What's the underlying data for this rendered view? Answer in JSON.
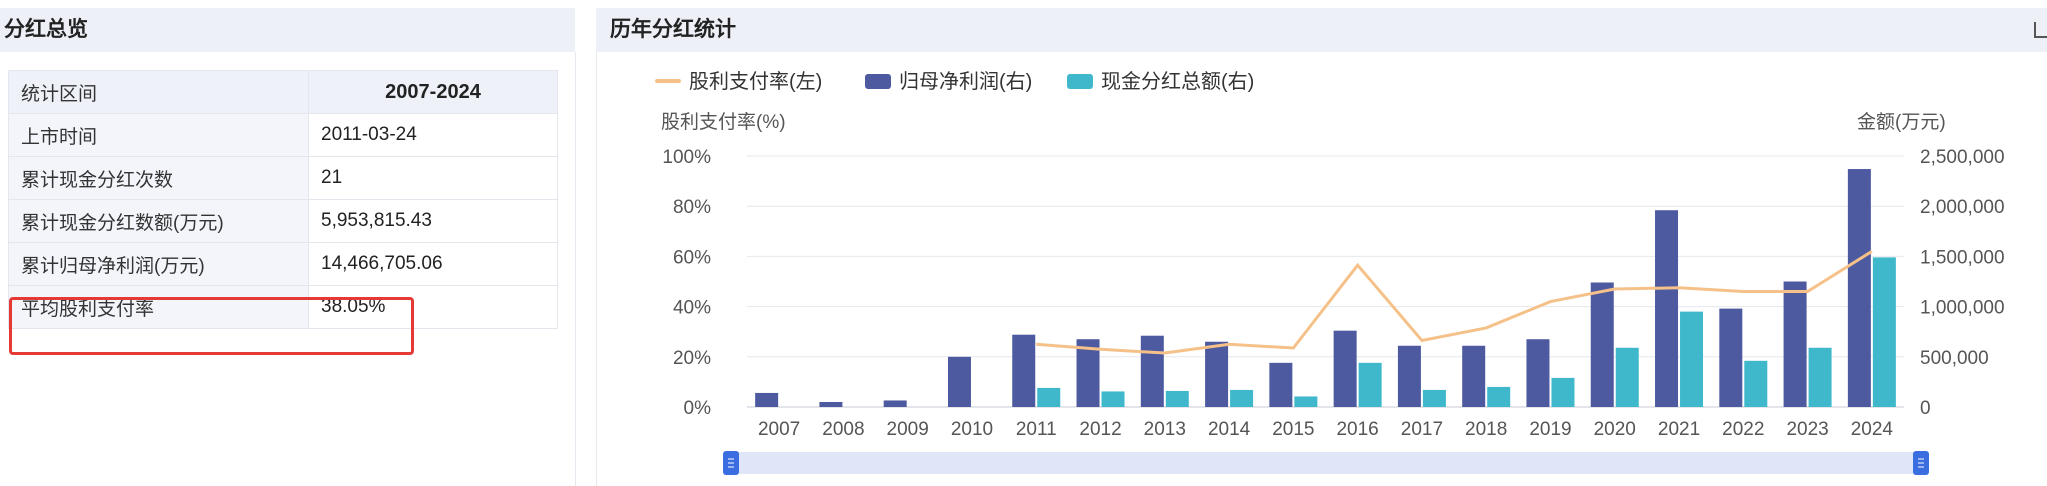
{
  "left_panel": {
    "title": "分红总览",
    "rows": [
      {
        "label": "统计区间",
        "value": "2007-2024"
      },
      {
        "label": "上市时间",
        "value": "2011-03-24"
      },
      {
        "label": "累计现金分红次数",
        "value": "21"
      },
      {
        "label": "累计现金分红数额(万元)",
        "value": "5,953,815.43"
      },
      {
        "label": "累计归母净利润(万元)",
        "value": "14,466,705.06"
      },
      {
        "label": "平均股利支付率",
        "value": "38.05%"
      }
    ]
  },
  "right_panel": {
    "title": "历年分红统计"
  },
  "colors": {
    "payout_line": "#f5c189",
    "net_profit_bar": "#4e5aa0",
    "cash_dividend_bar": "#3fb8cc",
    "highlight_border": "#e53935",
    "header_bg": "#eef0f8"
  },
  "chart_data": {
    "type": "bar",
    "categories": [
      "2007",
      "2008",
      "2009",
      "2010",
      "2011",
      "2012",
      "2013",
      "2014",
      "2015",
      "2016",
      "2017",
      "2018",
      "2019",
      "2020",
      "2021",
      "2022",
      "2023",
      "2024"
    ],
    "y_left": {
      "label": "股利支付率(%)",
      "min": 0,
      "max": 100,
      "ticks": [
        "0%",
        "20%",
        "40%",
        "60%",
        "80%",
        "100%"
      ]
    },
    "y_right": {
      "label": "金额(万元)",
      "min": 0,
      "max": 2500000,
      "ticks": [
        "0",
        "500,000",
        "1,000,000",
        "1,500,000",
        "2,000,000",
        "2,500,000"
      ]
    },
    "legend_position": "top-left",
    "series": [
      {
        "name": "股利支付率(左)",
        "kind": "line",
        "axis": "left",
        "values": [
          null,
          null,
          null,
          null,
          25,
          23,
          21.5,
          25,
          23.5,
          56.5,
          26.5,
          31.5,
          42,
          47,
          47.5,
          46,
          46,
          62
        ]
      },
      {
        "name": "归母净利润(右)",
        "kind": "bar",
        "axis": "right",
        "values": [
          140000,
          50000,
          65000,
          500000,
          720000,
          675000,
          710000,
          650000,
          440000,
          760000,
          610000,
          610000,
          675000,
          1240000,
          1960000,
          980000,
          1250000,
          2370000
        ]
      },
      {
        "name": "现金分红总额(右)",
        "kind": "bar",
        "axis": "right",
        "values": [
          0,
          0,
          0,
          0,
          190000,
          155000,
          160000,
          170000,
          105000,
          440000,
          170000,
          200000,
          290000,
          590000,
          950000,
          460000,
          590000,
          1490000
        ]
      }
    ]
  }
}
